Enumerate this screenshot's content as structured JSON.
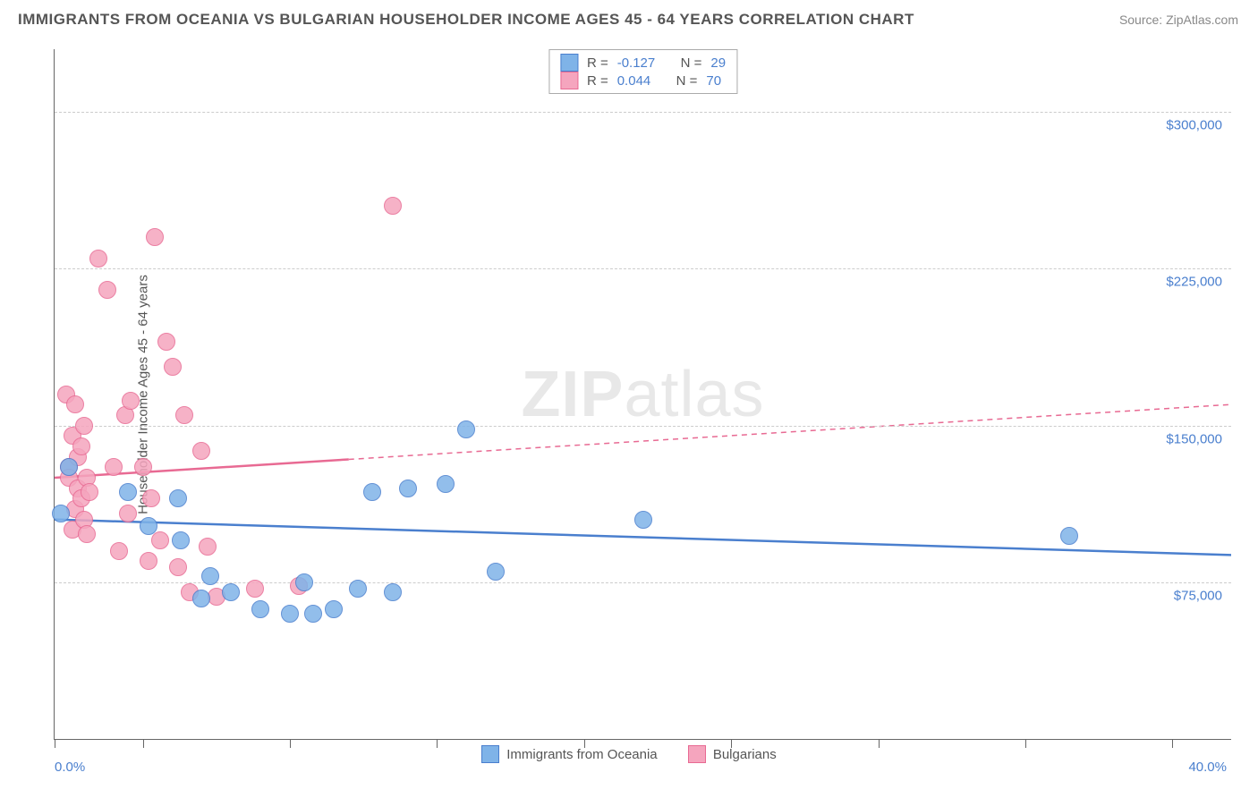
{
  "title": "IMMIGRANTS FROM OCEANIA VS BULGARIAN HOUSEHOLDER INCOME AGES 45 - 64 YEARS CORRELATION CHART",
  "source": "Source: ZipAtlas.com",
  "watermark_bold": "ZIP",
  "watermark_thin": "atlas",
  "y_axis_title": "Householder Income Ages 45 - 64 years",
  "chart": {
    "type": "scatter",
    "background_color": "#ffffff",
    "grid_color": "#cccccc",
    "axis_color": "#666666",
    "xlim": [
      0,
      40
    ],
    "ylim": [
      0,
      330000
    ],
    "x_tick_positions": [
      0,
      3,
      8,
      13,
      18,
      23,
      28,
      33,
      38
    ],
    "y_gridlines": [
      75000,
      150000,
      225000,
      300000
    ],
    "y_labels": [
      "$75,000",
      "$150,000",
      "$225,000",
      "$300,000"
    ],
    "x_label_min": "0.0%",
    "x_label_max": "40.0%",
    "x_label_color": "#4a7fce",
    "y_label_color": "#4a7fce",
    "marker_radius": 10,
    "marker_border_width": 1.5,
    "marker_fill_opacity": 0.35,
    "series": {
      "oceania": {
        "label": "Immigrants from Oceania",
        "fill_color": "#7fb3e8",
        "border_color": "#4a7fce",
        "R": "-0.127",
        "N": "29",
        "trend_line": {
          "x1": 0,
          "y1": 105000,
          "x2": 40,
          "y2": 88000,
          "solid_until_x": 40
        },
        "points": [
          [
            0.2,
            108000
          ],
          [
            0.5,
            130000
          ],
          [
            2.5,
            118000
          ],
          [
            3.2,
            102000
          ],
          [
            4.3,
            95000
          ],
          [
            4.2,
            115000
          ],
          [
            5.0,
            67000
          ],
          [
            5.3,
            78000
          ],
          [
            6.0,
            70000
          ],
          [
            7.0,
            62000
          ],
          [
            8.0,
            60000
          ],
          [
            8.5,
            75000
          ],
          [
            8.8,
            60000
          ],
          [
            9.5,
            62000
          ],
          [
            10.3,
            72000
          ],
          [
            10.8,
            118000
          ],
          [
            11.5,
            70000
          ],
          [
            12.0,
            120000
          ],
          [
            13.3,
            122000
          ],
          [
            14.0,
            148000
          ],
          [
            15.0,
            80000
          ],
          [
            20.0,
            105000
          ],
          [
            34.5,
            97000
          ]
        ]
      },
      "bulgarians": {
        "label": "Bulgarians",
        "fill_color": "#f5a5be",
        "border_color": "#e86a93",
        "R": "0.044",
        "N": "70",
        "trend_line": {
          "x1": 0,
          "y1": 125000,
          "x2": 40,
          "y2": 160000,
          "solid_until_x": 10
        },
        "points": [
          [
            0.4,
            165000
          ],
          [
            0.5,
            130000
          ],
          [
            0.5,
            125000
          ],
          [
            0.6,
            145000
          ],
          [
            0.6,
            100000
          ],
          [
            0.7,
            160000
          ],
          [
            0.7,
            110000
          ],
          [
            0.8,
            120000
          ],
          [
            0.8,
            135000
          ],
          [
            0.9,
            115000
          ],
          [
            0.9,
            140000
          ],
          [
            1.0,
            105000
          ],
          [
            1.0,
            150000
          ],
          [
            1.1,
            98000
          ],
          [
            1.1,
            125000
          ],
          [
            1.2,
            118000
          ],
          [
            1.5,
            230000
          ],
          [
            1.8,
            215000
          ],
          [
            2.0,
            130000
          ],
          [
            2.2,
            90000
          ],
          [
            2.4,
            155000
          ],
          [
            2.5,
            108000
          ],
          [
            2.6,
            162000
          ],
          [
            3.0,
            130000
          ],
          [
            3.2,
            85000
          ],
          [
            3.3,
            115000
          ],
          [
            3.4,
            240000
          ],
          [
            3.6,
            95000
          ],
          [
            3.8,
            190000
          ],
          [
            4.0,
            178000
          ],
          [
            4.2,
            82000
          ],
          [
            4.4,
            155000
          ],
          [
            4.6,
            70000
          ],
          [
            5.0,
            138000
          ],
          [
            5.2,
            92000
          ],
          [
            5.5,
            68000
          ],
          [
            6.8,
            72000
          ],
          [
            8.3,
            73000
          ],
          [
            11.5,
            255000
          ]
        ]
      }
    }
  },
  "legend": {
    "R_label": "R =",
    "N_label": "N ="
  }
}
